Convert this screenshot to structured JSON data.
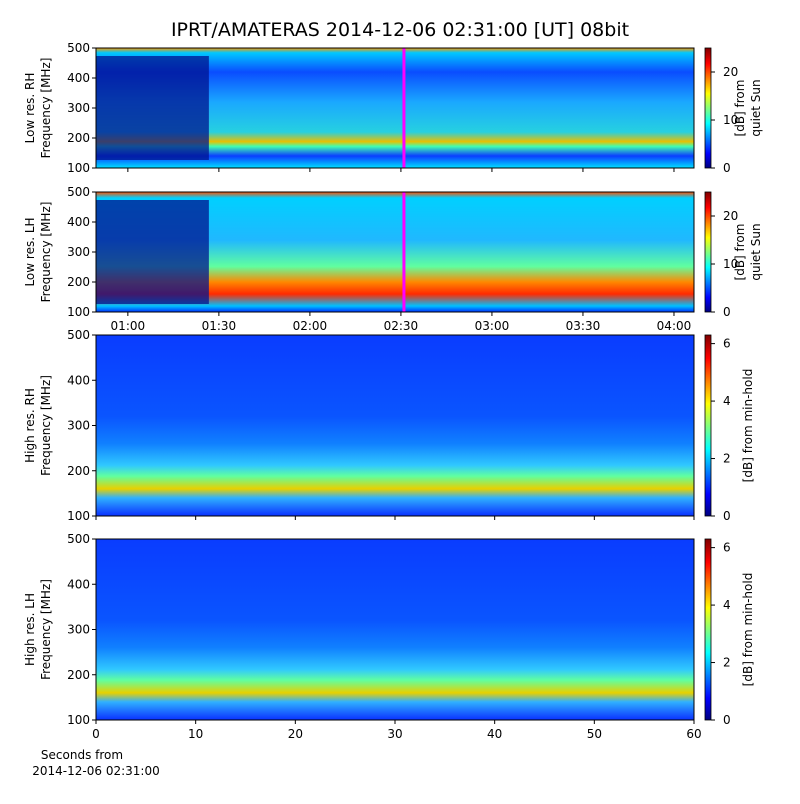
{
  "title": "IPRT/AMATERAS 2014-12-06 02:31:00 [UT]   08bit",
  "xlabel": [
    "Seconds from",
    "2014-12-06 02:31:00"
  ],
  "chart_data": [
    {
      "type": "heatmap",
      "ylabel": [
        "Low res. RH",
        "Frequency [MHz]"
      ],
      "ylim": [
        100,
        500
      ],
      "yticks": [
        100,
        200,
        300,
        400,
        500
      ],
      "xlim": [
        49.5,
        246.6
      ],
      "xticks": [
        {
          "value": 60,
          "label": "01:00"
        },
        {
          "value": 90,
          "label": "01:30"
        },
        {
          "value": 120,
          "label": "02:00"
        },
        {
          "value": 150,
          "label": "02:30"
        },
        {
          "value": 180,
          "label": "03:00"
        },
        {
          "value": 210,
          "label": "03:30"
        },
        {
          "value": 240,
          "label": "04:00"
        }
      ],
      "marker_x": 151,
      "colorbar": {
        "label": [
          "[dB] from",
          "quiet Sun"
        ],
        "lim": [
          0,
          25
        ],
        "ticks": [
          0,
          10,
          20
        ]
      }
    },
    {
      "type": "heatmap",
      "ylabel": [
        "Low res. LH",
        "Frequency [MHz]"
      ],
      "ylim": [
        100,
        500
      ],
      "yticks": [
        100,
        200,
        300,
        400,
        500
      ],
      "xlim": [
        49.5,
        246.6
      ],
      "xticks": [
        {
          "value": 60,
          "label": "01:00"
        },
        {
          "value": 90,
          "label": "01:30"
        },
        {
          "value": 120,
          "label": "02:00"
        },
        {
          "value": 150,
          "label": "02:30"
        },
        {
          "value": 180,
          "label": "03:00"
        },
        {
          "value": 210,
          "label": "03:30"
        },
        {
          "value": 240,
          "label": "04:00"
        }
      ],
      "show_xtick_labels": true,
      "marker_x": 151,
      "colorbar": {
        "label": [
          "[dB] from",
          "quiet Sun"
        ],
        "lim": [
          0,
          25
        ],
        "ticks": [
          0,
          10,
          20
        ]
      }
    },
    {
      "type": "heatmap",
      "ylabel": [
        "High res. RH",
        "Frequency [MHz]"
      ],
      "ylim": [
        100,
        500
      ],
      "yticks": [
        100,
        200,
        300,
        400,
        500
      ],
      "xlim": [
        0,
        60
      ],
      "xticks": [
        0,
        10,
        20,
        30,
        40,
        50,
        60
      ],
      "colorbar": {
        "label": [
          "[dB] from min-hold"
        ],
        "lim": [
          0,
          6.3
        ],
        "ticks": [
          0,
          2,
          4,
          6
        ]
      }
    },
    {
      "type": "heatmap",
      "ylabel": [
        "High res. LH",
        "Frequency [MHz]"
      ],
      "ylim": [
        100,
        500
      ],
      "yticks": [
        100,
        200,
        300,
        400,
        500
      ],
      "xlim": [
        0,
        60
      ],
      "xticks": [
        0,
        10,
        20,
        30,
        40,
        50,
        60
      ],
      "show_xtick_labels": true,
      "colorbar": {
        "label": [
          "[dB] from min-hold"
        ],
        "lim": [
          0,
          6.3
        ],
        "ticks": [
          0,
          2,
          4,
          6
        ]
      }
    }
  ]
}
